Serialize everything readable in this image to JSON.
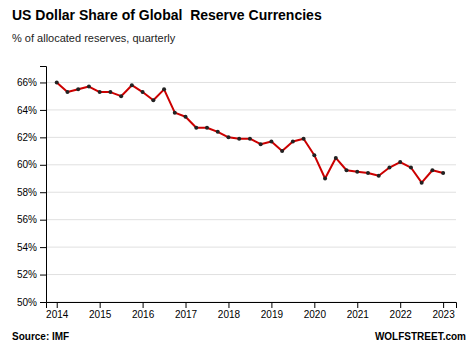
{
  "chart_data": {
    "type": "line",
    "title": "US Dollar Share of Global  Reserve Currencies",
    "subtitle": "% of allocated reserves, quarterly",
    "annotations": [
      "Source: IMF",
      "WOLFSTREET.com"
    ],
    "x": [
      2014.0,
      2014.25,
      2014.5,
      2014.75,
      2015.0,
      2015.25,
      2015.5,
      2015.75,
      2016.0,
      2016.25,
      2016.5,
      2016.75,
      2017.0,
      2017.25,
      2017.5,
      2017.75,
      2018.0,
      2018.25,
      2018.5,
      2018.75,
      2019.0,
      2019.25,
      2019.5,
      2019.75,
      2020.0,
      2020.25,
      2020.5,
      2020.75,
      2021.0,
      2021.25,
      2021.5,
      2021.75,
      2022.0,
      2022.25,
      2022.5,
      2022.75,
      2023.0
    ],
    "values": [
      66.0,
      65.3,
      65.5,
      65.7,
      65.3,
      65.3,
      65.0,
      65.8,
      65.3,
      64.7,
      65.5,
      63.8,
      63.5,
      62.7,
      62.7,
      62.4,
      62.0,
      61.9,
      61.9,
      61.5,
      61.7,
      61.0,
      61.7,
      61.9,
      60.7,
      59.0,
      60.5,
      59.6,
      59.5,
      59.4,
      59.2,
      59.8,
      60.2,
      59.8,
      58.7,
      59.6,
      59.4
    ],
    "color": "#cc0000",
    "marker": "circle",
    "xlim": [
      2013.75,
      2023.3
    ],
    "xticks": [
      2014,
      2015,
      2016,
      2017,
      2018,
      2019,
      2020,
      2021,
      2022,
      2023
    ],
    "ylim": [
      50,
      67.2
    ],
    "yticks": [
      {
        "value": 50,
        "label": "50%"
      },
      {
        "value": 52,
        "label": "52%"
      },
      {
        "value": 54,
        "label": "54%"
      },
      {
        "value": 56,
        "label": "56%"
      },
      {
        "value": 58,
        "label": "58%"
      },
      {
        "value": 60,
        "label": "60%"
      },
      {
        "value": 62,
        "label": "62%"
      },
      {
        "value": 64,
        "label": "64%"
      },
      {
        "value": 66,
        "label": "66%"
      }
    ],
    "grid": true
  }
}
